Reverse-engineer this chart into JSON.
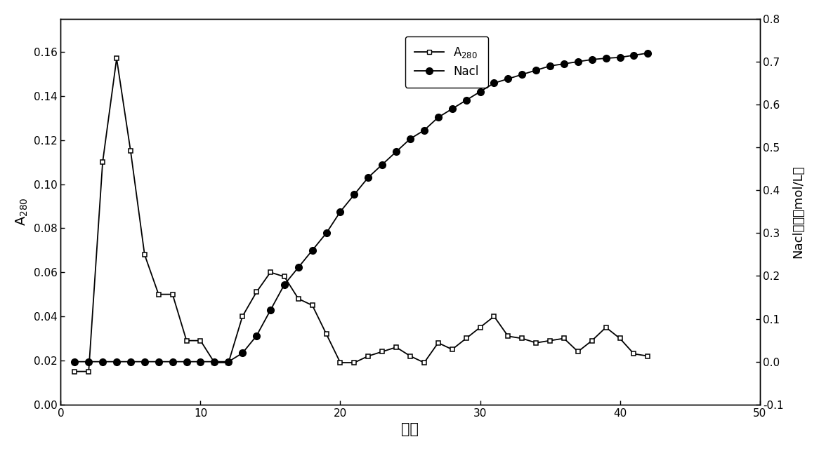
{
  "a280_x": [
    1,
    2,
    3,
    4,
    5,
    6,
    7,
    8,
    9,
    10,
    11,
    12,
    13,
    14,
    15,
    16,
    17,
    18,
    19,
    20,
    21,
    22,
    23,
    24,
    25,
    26,
    27,
    28,
    29,
    30,
    31,
    32,
    33,
    34,
    35,
    36,
    37,
    38,
    39,
    40,
    41,
    42
  ],
  "a280_y": [
    0.015,
    0.015,
    0.11,
    0.157,
    0.115,
    0.068,
    0.05,
    0.05,
    0.029,
    0.029,
    0.019,
    0.019,
    0.04,
    0.051,
    0.06,
    0.058,
    0.048,
    0.045,
    0.032,
    0.019,
    0.019,
    0.022,
    0.024,
    0.026,
    0.022,
    0.019,
    0.028,
    0.025,
    0.03,
    0.035,
    0.04,
    0.031,
    0.03,
    0.028,
    0.029,
    0.03,
    0.024,
    0.029,
    0.035,
    0.03,
    0.023,
    0.022
  ],
  "nacl_x": [
    1,
    2,
    3,
    4,
    5,
    6,
    7,
    8,
    9,
    10,
    11,
    12,
    13,
    14,
    15,
    16,
    17,
    18,
    19,
    20,
    21,
    22,
    23,
    24,
    25,
    26,
    27,
    28,
    29,
    30,
    31,
    32,
    33,
    34,
    35,
    36,
    37,
    38,
    39,
    40,
    41,
    42
  ],
  "nacl_y": [
    0.0,
    0.0,
    0.0,
    0.0,
    0.0,
    0.0,
    0.0,
    0.0,
    0.0,
    0.0,
    0.0,
    0.0,
    0.02,
    0.06,
    0.12,
    0.18,
    0.22,
    0.26,
    0.3,
    0.35,
    0.39,
    0.43,
    0.46,
    0.49,
    0.52,
    0.54,
    0.57,
    0.59,
    0.61,
    0.63,
    0.65,
    0.66,
    0.67,
    0.68,
    0.69,
    0.695,
    0.7,
    0.705,
    0.708,
    0.71,
    0.715,
    0.72
  ],
  "xlabel": "管号",
  "ylabel_left": "A$_{280}$",
  "ylabel_right": "Nacl浓度（mol/L）",
  "xlim": [
    0,
    50
  ],
  "ylim_left": [
    0.0,
    0.175
  ],
  "ylim_right": [
    -0.1,
    0.8
  ],
  "yticks_left": [
    0.0,
    0.02,
    0.04,
    0.06,
    0.08,
    0.1,
    0.12,
    0.14,
    0.16
  ],
  "yticks_right": [
    -0.1,
    0.0,
    0.1,
    0.2,
    0.3,
    0.4,
    0.5,
    0.6,
    0.7,
    0.8
  ],
  "ytick_labels_right": [
    "-0 1",
    "0.0",
    "0.1",
    "0.2",
    "0.3",
    "0.4",
    "0.5",
    "0.6",
    "0.7",
    "0.8"
  ],
  "xticks": [
    0,
    10,
    20,
    30,
    40,
    50
  ],
  "legend_a280": "A$_{280}$",
  "legend_nacl": "Nacl",
  "line_color": "#000000"
}
